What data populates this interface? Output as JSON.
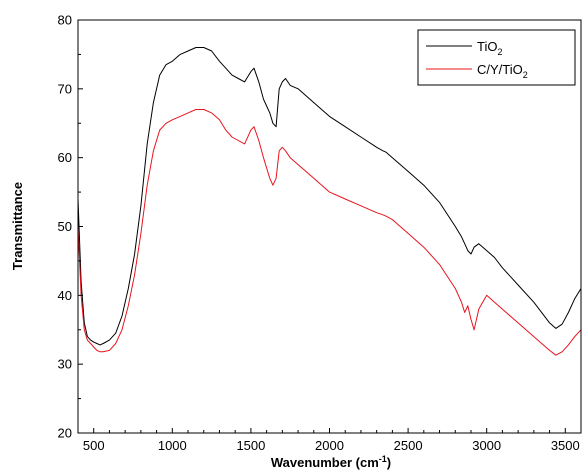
{
  "chart_data": {
    "type": "line",
    "xlabel": {
      "main": "Wavenumber (cm",
      "sup": "-1",
      "tail": ")"
    },
    "ylabel": "Transmittance",
    "xlim": [
      400,
      3600
    ],
    "ylim": [
      20,
      80
    ],
    "x_ticks": [
      500,
      1000,
      1500,
      2000,
      2500,
      3000,
      3500
    ],
    "y_ticks": [
      20,
      30,
      40,
      50,
      60,
      70,
      80
    ],
    "grid": false,
    "legend_position": "top-right",
    "series": [
      {
        "name": "TiO2",
        "legend": {
          "main": "TiO",
          "sub": "2"
        },
        "color": "#000000",
        "x": [
          400,
          420,
          440,
          460,
          480,
          500,
          520,
          540,
          560,
          600,
          640,
          680,
          720,
          760,
          800,
          840,
          880,
          920,
          960,
          1000,
          1050,
          1100,
          1150,
          1200,
          1250,
          1300,
          1340,
          1380,
          1420,
          1460,
          1500,
          1520,
          1550,
          1580,
          1600,
          1620,
          1640,
          1660,
          1680,
          1700,
          1720,
          1750,
          1800,
          1900,
          2000,
          2100,
          2200,
          2300,
          2340,
          2360,
          2400,
          2500,
          2600,
          2700,
          2800,
          2840,
          2860,
          2880,
          2900,
          2920,
          2950,
          3000,
          3050,
          3100,
          3200,
          3300,
          3400,
          3440,
          3480,
          3520,
          3560,
          3600
        ],
        "y": [
          54,
          42,
          36,
          34,
          33.5,
          33.2,
          33,
          32.8,
          33,
          33.5,
          34.5,
          37,
          41,
          46,
          53,
          62,
          68,
          72,
          73.5,
          74,
          75,
          75.5,
          76,
          76,
          75.5,
          74,
          73,
          72,
          71.5,
          71,
          72.5,
          73,
          71,
          68.5,
          67.5,
          66.5,
          65,
          64.5,
          70,
          71,
          71.5,
          70.5,
          70,
          68,
          66,
          64.5,
          63,
          61.5,
          61,
          60.8,
          60,
          58,
          56,
          53.5,
          50,
          48.5,
          47.5,
          46.5,
          46,
          47,
          47.5,
          46.5,
          45.5,
          44,
          41.5,
          39,
          36,
          35.2,
          35.8,
          37.5,
          39.5,
          41
        ]
      },
      {
        "name": "C/Y/TiO2",
        "legend": {
          "main": "C/Y/TiO",
          "sub": "2"
        },
        "color": "#e8141e",
        "x": [
          400,
          420,
          440,
          460,
          480,
          500,
          520,
          540,
          560,
          600,
          640,
          680,
          720,
          760,
          800,
          840,
          880,
          920,
          960,
          1000,
          1050,
          1100,
          1150,
          1200,
          1250,
          1300,
          1340,
          1380,
          1420,
          1460,
          1500,
          1520,
          1550,
          1580,
          1600,
          1620,
          1640,
          1660,
          1680,
          1700,
          1720,
          1750,
          1800,
          1900,
          2000,
          2100,
          2200,
          2300,
          2340,
          2360,
          2400,
          2500,
          2600,
          2700,
          2800,
          2840,
          2860,
          2880,
          2900,
          2920,
          2950,
          3000,
          3050,
          3100,
          3200,
          3300,
          3400,
          3440,
          3480,
          3520,
          3560,
          3600
        ],
        "y": [
          50,
          40,
          35,
          33.5,
          33,
          32.5,
          32,
          31.8,
          31.8,
          32,
          33,
          35,
          38.5,
          43,
          49,
          56,
          61,
          64,
          65,
          65.5,
          66,
          66.5,
          67,
          67,
          66.5,
          65.5,
          64,
          63,
          62.5,
          62,
          64,
          64.5,
          62.5,
          60,
          58.5,
          57,
          56,
          57,
          61,
          61.5,
          61,
          60,
          59,
          57,
          55,
          54,
          53,
          52,
          51.7,
          51.5,
          51,
          49,
          47,
          44.5,
          41,
          39,
          37.5,
          38.5,
          36.5,
          35,
          38,
          40,
          39,
          38,
          36,
          34,
          32,
          31.3,
          31.8,
          32.8,
          34,
          35
        ]
      }
    ]
  }
}
